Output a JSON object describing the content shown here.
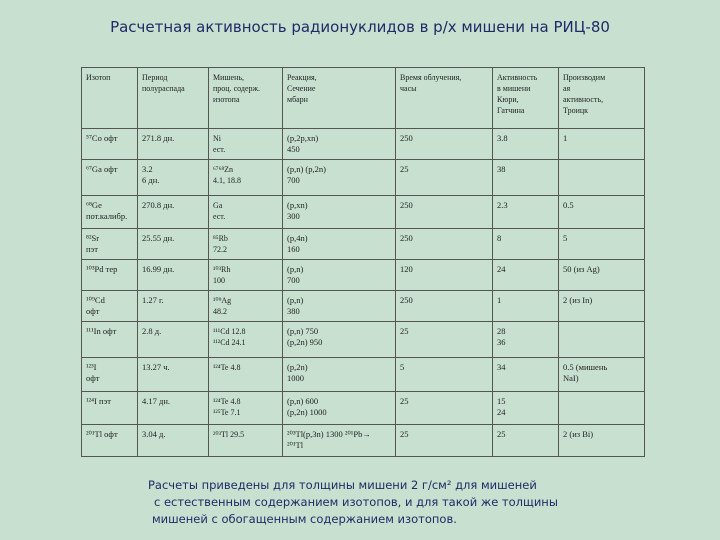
{
  "title": "Расчетная активность радионуклидов в р/х мишени на РИЦ-80",
  "table": {
    "columns": [
      [
        "Изотоп"
      ],
      [
        "Период",
        "полураспада"
      ],
      [
        "Мишень,",
        "проц. содерж.",
        "изотопа"
      ],
      [
        "Реакция,",
        "Сечение",
        "мбарн"
      ],
      [
        "Время облучения,",
        "часы"
      ],
      [
        "Активность",
        "в мишени",
        "Кюри,",
        "Гатчина"
      ],
      [
        "Производим",
        "ая",
        "активность,",
        "Троицк"
      ]
    ],
    "rows": [
      [
        [
          "⁵⁷Co офт"
        ],
        [
          "271.8 дн."
        ],
        [
          "Ni",
          "ест."
        ],
        [
          "(p,2p,xn)",
          "450"
        ],
        [
          "250"
        ],
        [
          "3.8"
        ],
        [
          "1"
        ]
      ],
      [
        [
          "⁶⁷Ga офт"
        ],
        [
          "3.2",
          "6 дн."
        ],
        [
          "⁶⁷⁶⁸Zn",
          "4.1, 18.8"
        ],
        [
          "(p,n) (p,2n)",
          "700"
        ],
        [
          "25"
        ],
        [
          "38"
        ],
        [
          ""
        ]
      ],
      [
        [
          "⁶⁸Ge",
          "пот.калибр."
        ],
        [
          "270.8 дн."
        ],
        [
          "Ga",
          "ест."
        ],
        [
          "(p,xn)",
          "300"
        ],
        [
          "250"
        ],
        [
          "2.3"
        ],
        [
          "0.5"
        ]
      ],
      [
        [
          "⁸²Sr",
          "пэт"
        ],
        [
          "25.55 дн."
        ],
        [
          "⁸⁵Rb",
          "72.2"
        ],
        [
          "(p,4n)",
          "160"
        ],
        [
          "250"
        ],
        [
          "8"
        ],
        [
          "5"
        ]
      ],
      [
        [
          "¹⁰³Pd тер"
        ],
        [
          "16.99 дн."
        ],
        [
          "¹⁰³Rh",
          "100"
        ],
        [
          "(p,n)",
          "700"
        ],
        [
          "120"
        ],
        [
          "24"
        ],
        [
          "50 (из Ag)"
        ]
      ],
      [
        [
          "¹⁰⁹Cd",
          "офт"
        ],
        [
          "1.27 г."
        ],
        [
          "¹⁰⁹Ag",
          "48.2"
        ],
        [
          "(p,n)",
          "380"
        ],
        [
          "250"
        ],
        [
          "1"
        ],
        [
          "2 (из In)"
        ]
      ],
      [
        [
          "¹¹¹In офт"
        ],
        [
          "2.8 д."
        ],
        [
          "¹¹¹Cd 12.8",
          "¹¹²Cd 24.1"
        ],
        [
          "(p,n) 750",
          "(p,2n) 950"
        ],
        [
          "25"
        ],
        [
          "28",
          "36"
        ],
        [
          ""
        ]
      ],
      [
        [
          "¹²³I",
          "офт"
        ],
        [
          "13.27 ч."
        ],
        [
          "¹²⁴Te 4.8"
        ],
        [
          "(p,2n)",
          "1000"
        ],
        [
          "5"
        ],
        [
          "34"
        ],
        [
          "0.5 (мишень",
          "NaI)"
        ]
      ],
      [
        [
          "¹²⁴I пэт"
        ],
        [
          "4.17 дн."
        ],
        [
          "¹²⁴Te 4.8",
          "¹²⁵Te 7.1"
        ],
        [
          "(p,n) 600",
          "(p,2n) 1000"
        ],
        [
          "25"
        ],
        [
          "15",
          "24"
        ],
        [
          ""
        ]
      ],
      [
        [
          "²⁰¹Tl офт"
        ],
        [
          "3.04 д."
        ],
        [
          "²⁰³Tl 29.5"
        ],
        [
          "²⁰³Tl(p,3n) 1300 ²⁰¹Pb→",
          "²⁰¹Tl"
        ],
        [
          "25"
        ],
        [
          "25"
        ],
        [
          "2 (из Bi)"
        ]
      ]
    ]
  },
  "footnote": [
    "Расчеты приведены для толщины мишени 2 г/см² для мишеней",
    "с естественным содержанием изотопов, и для такой же толщины",
    "мишеней с обогащенным содержанием изотопов."
  ]
}
